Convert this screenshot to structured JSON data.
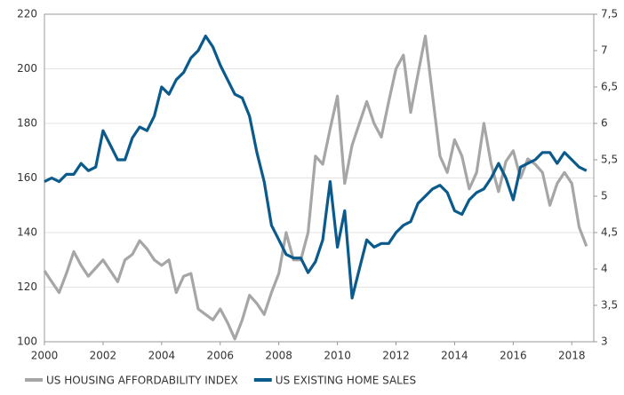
{
  "chart_data": {
    "type": "line",
    "x": [
      2000,
      2000.25,
      2000.5,
      2000.75,
      2001,
      2001.25,
      2001.5,
      2001.75,
      2002,
      2002.25,
      2002.5,
      2002.75,
      2003,
      2003.25,
      2003.5,
      2003.75,
      2004,
      2004.25,
      2004.5,
      2004.75,
      2005,
      2005.25,
      2005.5,
      2005.75,
      2006,
      2006.25,
      2006.5,
      2006.75,
      2007,
      2007.25,
      2007.5,
      2007.75,
      2008,
      2008.25,
      2008.5,
      2008.75,
      2009,
      2009.25,
      2009.5,
      2009.75,
      2010,
      2010.25,
      2010.5,
      2010.75,
      2011,
      2011.25,
      2011.5,
      2011.75,
      2012,
      2012.25,
      2012.5,
      2012.75,
      2013,
      2013.25,
      2013.5,
      2013.75,
      2014,
      2014.25,
      2014.5,
      2014.75,
      2015,
      2015.25,
      2015.5,
      2015.75,
      2016,
      2016.25,
      2016.5,
      2016.75,
      2017,
      2017.25,
      2017.5,
      2017.75,
      2018,
      2018.25,
      2018.5
    ],
    "series": [
      {
        "name": "US HOUSING AFFORDABILITY INDEX",
        "color": "#a6a6a6",
        "axis": "y",
        "values": [
          126,
          122,
          118,
          125,
          133,
          128,
          124,
          127,
          130,
          126,
          122,
          130,
          132,
          137,
          134,
          130,
          128,
          130,
          118,
          124,
          125,
          112,
          110,
          108,
          112,
          107,
          101,
          108,
          117,
          114,
          110,
          118,
          125,
          140,
          130,
          130,
          140,
          168,
          165,
          178,
          190,
          158,
          172,
          180,
          188,
          180,
          175,
          188,
          200,
          205,
          184,
          198,
          212,
          190,
          168,
          162,
          174,
          168,
          156,
          162,
          180,
          165,
          155,
          166,
          170,
          160,
          167,
          165,
          162,
          150,
          158,
          162,
          158,
          142,
          135
        ]
      },
      {
        "name": "US EXISTING HOME SALES",
        "color": "#0b5a8c",
        "axis": "y2",
        "values": [
          5.2,
          5.25,
          5.2,
          5.3,
          5.3,
          5.45,
          5.35,
          5.4,
          5.9,
          5.7,
          5.5,
          5.5,
          5.8,
          5.95,
          5.9,
          6.1,
          6.5,
          6.4,
          6.6,
          6.7,
          6.9,
          7.0,
          7.2,
          7.05,
          6.8,
          6.6,
          6.4,
          6.35,
          6.1,
          5.6,
          5.2,
          4.6,
          4.4,
          4.2,
          4.15,
          4.15,
          3.95,
          4.1,
          4.4,
          5.2,
          4.3,
          4.8,
          3.6,
          4.0,
          4.4,
          4.3,
          4.35,
          4.35,
          4.5,
          4.6,
          4.65,
          4.9,
          5.0,
          5.1,
          5.15,
          5.05,
          4.8,
          4.75,
          4.95,
          5.05,
          5.1,
          5.25,
          5.45,
          5.25,
          4.95,
          5.4,
          5.45,
          5.5,
          5.6,
          5.6,
          5.45,
          5.6,
          5.5,
          5.4,
          5.35
        ]
      }
    ],
    "xlim": [
      2000,
      2018.75
    ],
    "xticks": [
      2000,
      2002,
      2004,
      2006,
      2008,
      2010,
      2012,
      2014,
      2016,
      2018
    ],
    "ylim": [
      100,
      220
    ],
    "yticks": [
      100,
      120,
      140,
      160,
      180,
      200,
      220
    ],
    "y2lim": [
      3,
      7.5
    ],
    "y2ticks": [
      3,
      {
        "value": 3.5,
        "label": "3,5"
      },
      4,
      {
        "value": 4.5,
        "label": "4,5"
      },
      5,
      {
        "value": 5.5,
        "label": "5,5"
      },
      6,
      {
        "value": 6.5,
        "label": "6,5"
      },
      7,
      {
        "value": 7.5,
        "label": "7,5"
      }
    ],
    "grid": true,
    "legend": "bottom"
  }
}
